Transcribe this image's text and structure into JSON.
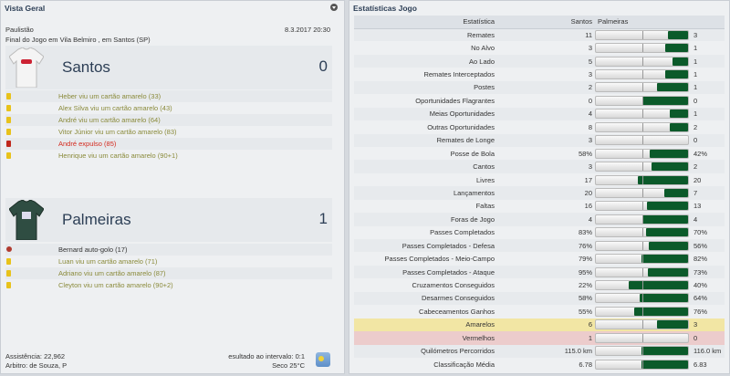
{
  "overview": {
    "title": "Vista Geral",
    "competition": "Paulistão",
    "datetime": "8.3.2017 20:30",
    "venue": "Final do Jogo em Vila Belmiro , em Santos (SP)",
    "home": {
      "name": "Santos",
      "score": "0",
      "events": [
        {
          "type": "yellow",
          "text": "Heber viu um cartão amarelo (33)"
        },
        {
          "type": "yellow",
          "text": "Alex Silva viu um cartão amarelo (43)"
        },
        {
          "type": "yellow",
          "text": "André viu um cartão amarelo (64)"
        },
        {
          "type": "yellow",
          "text": "Vitor Júnior viu um cartão amarelo (83)"
        },
        {
          "type": "red",
          "text": "André expulso (85)"
        },
        {
          "type": "yellow",
          "text": "Henrique viu um cartão amarelo (90+1)"
        }
      ]
    },
    "away": {
      "name": "Palmeiras",
      "score": "1",
      "events": [
        {
          "type": "goal",
          "text": "Bernard auto-golo (17)"
        },
        {
          "type": "yellow",
          "text": "Luan viu um cartão amarelo (71)"
        },
        {
          "type": "yellow",
          "text": "Adriano viu um cartão amarelo (87)"
        },
        {
          "type": "yellow",
          "text": "Cleyton viu um cartão amarelo (90+2)"
        }
      ]
    },
    "attendance": "Assistência: 22,962",
    "referee": "Arbitro: de Souza, P",
    "halftime": "esultado ao intervalo: 0:1",
    "weather": "Seco 25°C",
    "weather_icon": "sunny-icon"
  },
  "stats": {
    "title": "Estatísticas Jogo",
    "col_stat": "Estatística",
    "col_home": "Santos",
    "col_away": "Palmeiras",
    "bar_color": "#0b5a2a",
    "rows": [
      {
        "label": "Remates",
        "home": "11",
        "away": "3"
      },
      {
        "label": "No Alvo",
        "home": "3",
        "away": "1"
      },
      {
        "label": "Ao Lado",
        "home": "5",
        "away": "1"
      },
      {
        "label": "Remates Interceptados",
        "home": "3",
        "away": "1"
      },
      {
        "label": "Postes",
        "home": "2",
        "away": "1"
      },
      {
        "label": "Oportunidades Flagrantes",
        "home": "0",
        "away": "0"
      },
      {
        "label": "Meias Oportunidades",
        "home": "4",
        "away": "1"
      },
      {
        "label": "Outras Oportunidades",
        "home": "8",
        "away": "2"
      },
      {
        "label": "Remates de Longe",
        "home": "3",
        "away": "0"
      },
      {
        "label": "Posse de Bola",
        "home": "58%",
        "away": "42%"
      },
      {
        "label": "Cantos",
        "home": "3",
        "away": "2"
      },
      {
        "label": "Livres",
        "home": "17",
        "away": "20"
      },
      {
        "label": "Lançamentos",
        "home": "20",
        "away": "7"
      },
      {
        "label": "Faltas",
        "home": "16",
        "away": "13"
      },
      {
        "label": "Foras de Jogo",
        "home": "4",
        "away": "4"
      },
      {
        "label": "Passes Completados",
        "home": "83%",
        "away": "70%"
      },
      {
        "label": "Passes Completados - Defesa",
        "home": "76%",
        "away": "56%"
      },
      {
        "label": "Passes Completados - Meio-Campo",
        "home": "79%",
        "away": "82%"
      },
      {
        "label": "Passes Completados - Ataque",
        "home": "95%",
        "away": "73%"
      },
      {
        "label": "Cruzamentos Conseguidos",
        "home": "22%",
        "away": "40%"
      },
      {
        "label": "Desarmes Conseguidos",
        "home": "58%",
        "away": "64%"
      },
      {
        "label": "Cabeceamentos Ganhos",
        "home": "55%",
        "away": "76%"
      },
      {
        "label": "Amarelos",
        "home": "6",
        "away": "3",
        "highlight": "yellow"
      },
      {
        "label": "Vermelhos",
        "home": "1",
        "away": "0",
        "highlight": "red"
      },
      {
        "label": "Quilómetros Percorridos",
        "home": "115.0 km",
        "away": "116.0 km"
      },
      {
        "label": "Classificação Média",
        "home": "6.78",
        "away": "6.83"
      }
    ]
  }
}
